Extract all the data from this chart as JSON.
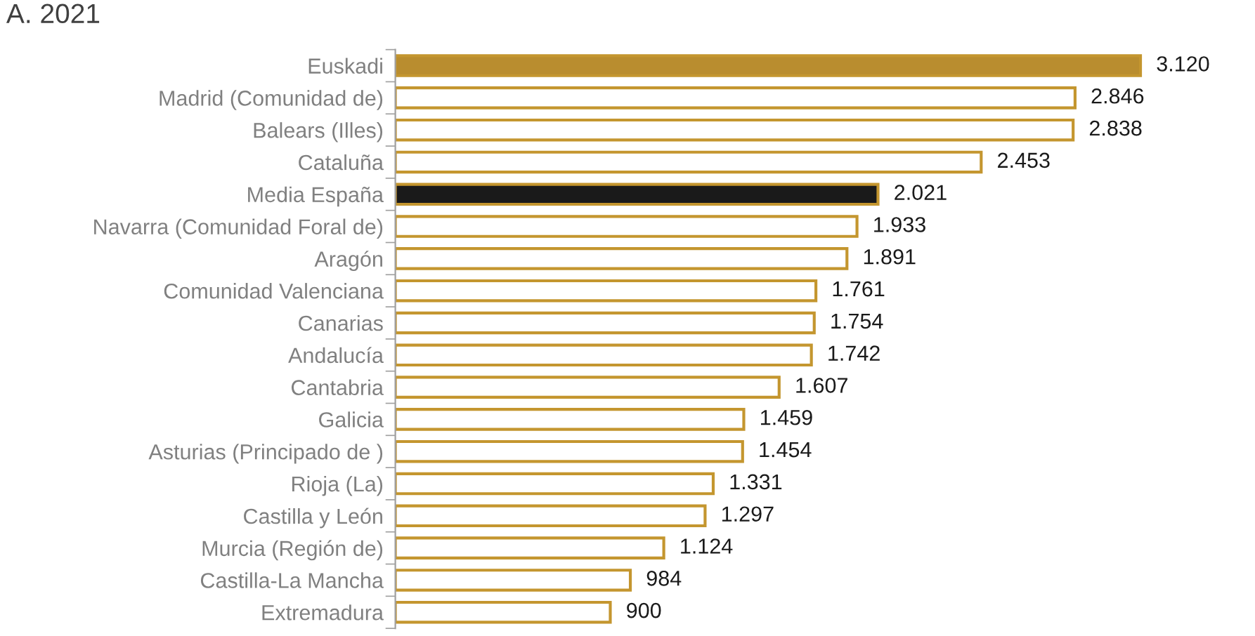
{
  "chart_data": {
    "type": "bar",
    "orientation": "horizontal",
    "title": "A. 2021",
    "categories": [
      "Euskadi",
      "Madrid (Comunidad de)",
      "Balears (Illes)",
      "Cataluña",
      "Media España",
      "Navarra (Comunidad Foral de)",
      "Aragón",
      "Comunidad Valenciana",
      "Canarias",
      "Andalucía",
      "Cantabria",
      "Galicia",
      "Asturias (Principado de )",
      "Rioja (La)",
      "Castilla y León",
      "Murcia (Región de)",
      "Castilla-La Mancha",
      "Extremadura"
    ],
    "values": [
      3120,
      2846,
      2838,
      2453,
      2021,
      1933,
      1891,
      1761,
      1754,
      1742,
      1607,
      1459,
      1454,
      1331,
      1297,
      1124,
      984,
      900
    ],
    "value_labels": [
      "3.120",
      "2.846",
      "2.838",
      "2.453",
      "2.021",
      "1.933",
      "1.891",
      "1.761",
      "1.754",
      "1.742",
      "1.607",
      "1.459",
      "1.454",
      "1.331",
      "1.297",
      "1.124",
      "984",
      "900"
    ],
    "colors": [
      "#b98d2f",
      "#ffffff",
      "#ffffff",
      "#ffffff",
      "#1a1a1a",
      "#ffffff",
      "#ffffff",
      "#ffffff",
      "#ffffff",
      "#ffffff",
      "#ffffff",
      "#ffffff",
      "#ffffff",
      "#ffffff",
      "#ffffff",
      "#ffffff",
      "#ffffff",
      "#ffffff"
    ],
    "tick_labels": "y",
    "grid": false,
    "legend": false
  }
}
